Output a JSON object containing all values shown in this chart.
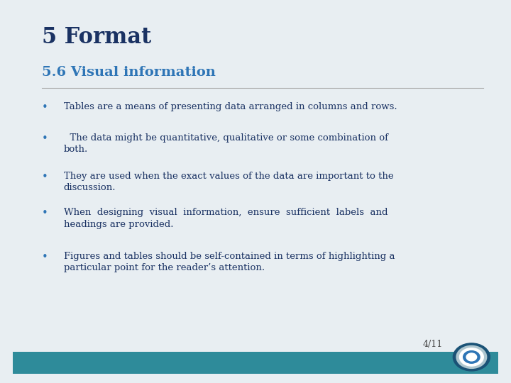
{
  "title": "5 Format",
  "subtitle": "5.6 Visual information",
  "title_color": "#1a3263",
  "subtitle_color": "#2e75b6",
  "bg_color": "#e8eef2",
  "slide_bg": "#ffffff",
  "text_color": "#1a3263",
  "bullet_color": "#2e75b6",
  "border_color": "#2e8b9a",
  "page_num": "4/11",
  "bullets": [
    "Tables are a means of presenting data arranged in columns and rows.",
    "  The data might be quantitative, qualitative or some combination of\nboth.",
    "They are used when the exact values of the data are important to the\ndiscussion.",
    "When  designing  visual  information,  ensure  sufficient  labels  and\nheadings are provided.",
    "Figures and tables should be self-contained in terms of highlighting a\nparticular point for the reader’s attention."
  ],
  "title_fontsize": 22,
  "subtitle_fontsize": 14,
  "bullet_fontsize": 9.5,
  "page_fontsize": 9
}
